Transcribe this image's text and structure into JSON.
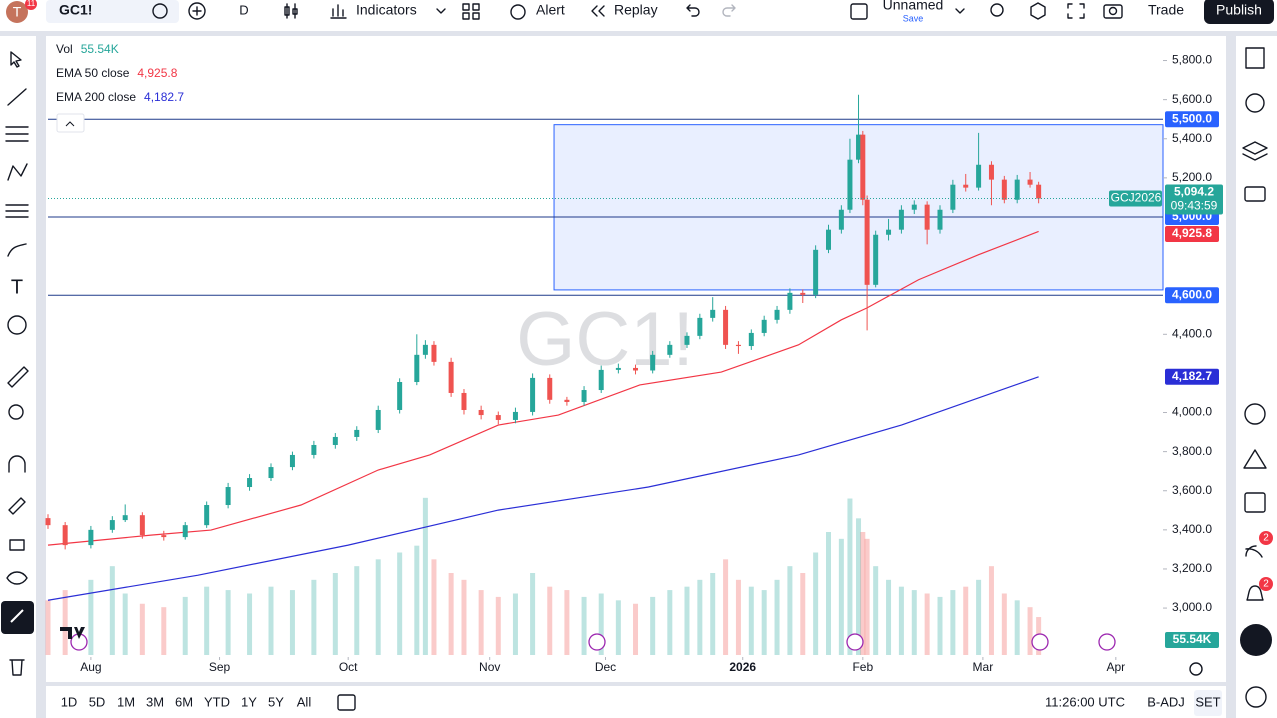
{
  "toolbar": {
    "avatar": "T",
    "avatar_badge": "11",
    "symbol": "GC1!",
    "interval": "D",
    "indicators": "Indicators",
    "alert": "Alert",
    "replay": "Replay",
    "layout_name": "Unnamed",
    "save": "Save",
    "trade": "Trade",
    "publish": "Publish"
  },
  "chart_data": {
    "type": "candlestick",
    "watermark": "GC1!",
    "x": [
      0,
      4,
      10,
      15,
      18,
      22,
      27,
      32,
      37,
      42,
      47,
      52,
      57,
      62,
      67,
      72,
      77,
      82,
      86,
      88,
      90,
      94,
      97,
      101,
      105,
      109,
      113,
      117,
      121,
      125,
      129,
      133,
      137,
      141,
      145,
      149,
      152,
      155,
      158,
      161,
      164,
      167,
      170,
      173,
      176,
      179,
      182,
      185,
      187,
      189,
      190,
      191,
      193,
      196,
      199,
      202,
      205,
      208,
      211,
      214,
      217,
      220,
      223,
      226,
      229,
      231
    ],
    "open": [
      3460,
      3424,
      3322,
      3400,
      3450,
      3475,
      3373,
      3363,
      3424,
      3527,
      3619,
      3665,
      3721,
      3783,
      3834,
      3875,
      3911,
      4013,
      4156,
      4295,
      4346,
      4259,
      4100,
      4013,
      3987,
      3962,
      4003,
      4177,
      4065,
      4054,
      4115,
      4218,
      4228,
      4215,
      4295,
      4346,
      4392,
      4484,
      4525,
      4346,
      4340,
      4407,
      4474,
      4525,
      4612,
      4602,
      4832,
      4935,
      5037,
      5293,
      5421,
      5088,
      4653,
      4909,
      4935,
      5037,
      5063,
      4935,
      5037,
      5165,
      5150,
      5267,
      5191,
      5088,
      5191,
      5165
    ],
    "high": [
      3480,
      3440,
      3420,
      3470,
      3530,
      3490,
      3395,
      3440,
      3545,
      3640,
      3685,
      3740,
      3800,
      3855,
      3895,
      3930,
      4035,
      4175,
      4400,
      4370,
      4365,
      4280,
      4120,
      4035,
      4005,
      4025,
      4200,
      4195,
      4080,
      4135,
      4240,
      4250,
      4245,
      4315,
      4365,
      4410,
      4505,
      4590,
      4545,
      4365,
      4425,
      4495,
      4545,
      4635,
      4630,
      4855,
      4960,
      5060,
      5400,
      5625,
      5440,
      5110,
      4930,
      4990,
      5060,
      5085,
      5080,
      5060,
      5190,
      5220,
      5430,
      5285,
      5210,
      5215,
      5230,
      5180
    ],
    "low": [
      3405,
      3300,
      3305,
      3385,
      3440,
      3355,
      3345,
      3350,
      3410,
      3510,
      3600,
      3650,
      3705,
      3765,
      3815,
      3855,
      3895,
      3995,
      4140,
      4275,
      4240,
      4080,
      3990,
      3965,
      3940,
      3945,
      3985,
      4045,
      4035,
      4035,
      4100,
      4200,
      4195,
      4200,
      4280,
      4330,
      4375,
      4465,
      4325,
      4300,
      4320,
      4390,
      4455,
      4505,
      4560,
      4585,
      4815,
      4915,
      5020,
      5275,
      5060,
      4420,
      4640,
      4880,
      4915,
      5015,
      4860,
      4915,
      5020,
      5130,
      5135,
      5060,
      5070,
      5070,
      5150,
      5070
    ],
    "close": [
      3424,
      3322,
      3400,
      3450,
      3475,
      3373,
      3363,
      3424,
      3527,
      3619,
      3665,
      3721,
      3783,
      3834,
      3875,
      3911,
      4013,
      4156,
      4295,
      4346,
      4259,
      4100,
      4013,
      3987,
      3962,
      4003,
      4177,
      4065,
      4054,
      4115,
      4218,
      4228,
      4215,
      4295,
      4346,
      4392,
      4484,
      4525,
      4346,
      4340,
      4407,
      4474,
      4525,
      4612,
      4602,
      4832,
      4935,
      5037,
      5293,
      5421,
      5088,
      4653,
      4909,
      4935,
      5037,
      5063,
      4935,
      5037,
      5165,
      5150,
      5267,
      5191,
      5088,
      5191,
      5165,
      5094.2
    ],
    "up_color": "#26a69a",
    "down_color": "#ef5350",
    "volume": {
      "name": "Vol",
      "values": [
        80,
        95,
        110,
        130,
        90,
        75,
        70,
        85,
        100,
        95,
        90,
        100,
        95,
        110,
        120,
        130,
        140,
        150,
        160,
        230,
        140,
        120,
        110,
        95,
        85,
        90,
        120,
        100,
        95,
        85,
        90,
        80,
        75,
        85,
        95,
        100,
        110,
        120,
        140,
        110,
        100,
        95,
        110,
        130,
        120,
        150,
        180,
        170,
        229,
        200,
        180,
        170,
        130,
        110,
        100,
        95,
        90,
        85,
        95,
        100,
        110,
        130,
        90,
        80,
        70,
        55.54
      ],
      "ylim": [
        0,
        300
      ],
      "last": {
        "value": 55.54,
        "label": "55.54K"
      }
    },
    "series": [
      {
        "name": "EMA 50 close",
        "color": "#f23645",
        "x": [
          0,
          24,
          38,
          59,
          77,
          89,
          105,
          119,
          138,
          157,
          175,
          185,
          191,
          203,
          217,
          231
        ],
        "values": [
          3322,
          3373,
          3399,
          3527,
          3706,
          3783,
          3936,
          3987,
          4141,
          4207,
          4346,
          4474,
          4535,
          4679,
          4807,
          4925.8
        ],
        "last": {
          "value": 4925.8,
          "label": "4,925.8"
        }
      },
      {
        "name": "EMA 200 close",
        "color": "#2a2ed6",
        "x": [
          0,
          35,
          70,
          105,
          140,
          175,
          199,
          231
        ],
        "values": [
          3040,
          3168,
          3322,
          3501,
          3619,
          3783,
          3936,
          4182.7
        ],
        "last": {
          "value": 4182.7,
          "label": "4,182.7"
        }
      }
    ],
    "levels": [
      {
        "value": 5500,
        "label": "5,500.0"
      },
      {
        "value": 5000,
        "label": "5,000.0"
      },
      {
        "value": 4600,
        "label": "4,600.0"
      }
    ],
    "zone": {
      "x0": 118,
      "price_low": 4627,
      "price_high": 5472
    },
    "last_price": {
      "symbol": "GCJ2026",
      "value": 5094.2,
      "label": "5,094.2",
      "countdown": "09:43:59"
    },
    "xlim": [
      0,
      260
    ],
    "ylim": [
      2760,
      5905
    ],
    "yticks": [
      {
        "value": 5800,
        "label": "5,800.0"
      },
      {
        "value": 5600,
        "label": "5,600.0"
      },
      {
        "value": 5400,
        "label": "5,400.0"
      },
      {
        "value": 5200,
        "label": "5,200.0"
      },
      {
        "value": 4400,
        "label": "4,400.0"
      },
      {
        "value": 4000,
        "label": "4,000.0"
      },
      {
        "value": 3800,
        "label": "3,800.0"
      },
      {
        "value": 3600,
        "label": "3,600.0"
      },
      {
        "value": 3400,
        "label": "3,400.0"
      },
      {
        "value": 3200,
        "label": "3,200.0"
      },
      {
        "value": 3000,
        "label": "3,000.0"
      }
    ],
    "xticks": [
      {
        "value": 10,
        "label": "Aug"
      },
      {
        "value": 40,
        "label": "Sep"
      },
      {
        "value": 70,
        "label": "Oct"
      },
      {
        "value": 103,
        "label": "Nov"
      },
      {
        "value": 130,
        "label": "Dec"
      },
      {
        "value": 162,
        "label": "2026"
      },
      {
        "value": 190,
        "label": "Feb"
      },
      {
        "value": 218,
        "label": "Mar"
      },
      {
        "value": 249,
        "label": "Apr"
      }
    ]
  },
  "sidebar_badges": [
    "2",
    "2"
  ],
  "bottom_bar": {
    "ranges": [
      "1D",
      "5D",
      "1M",
      "3M",
      "6M",
      "YTD",
      "1Y",
      "5Y",
      "All"
    ],
    "time": "11:26:00 UTC",
    "adjust": "B-ADJ",
    "session": "SET"
  }
}
